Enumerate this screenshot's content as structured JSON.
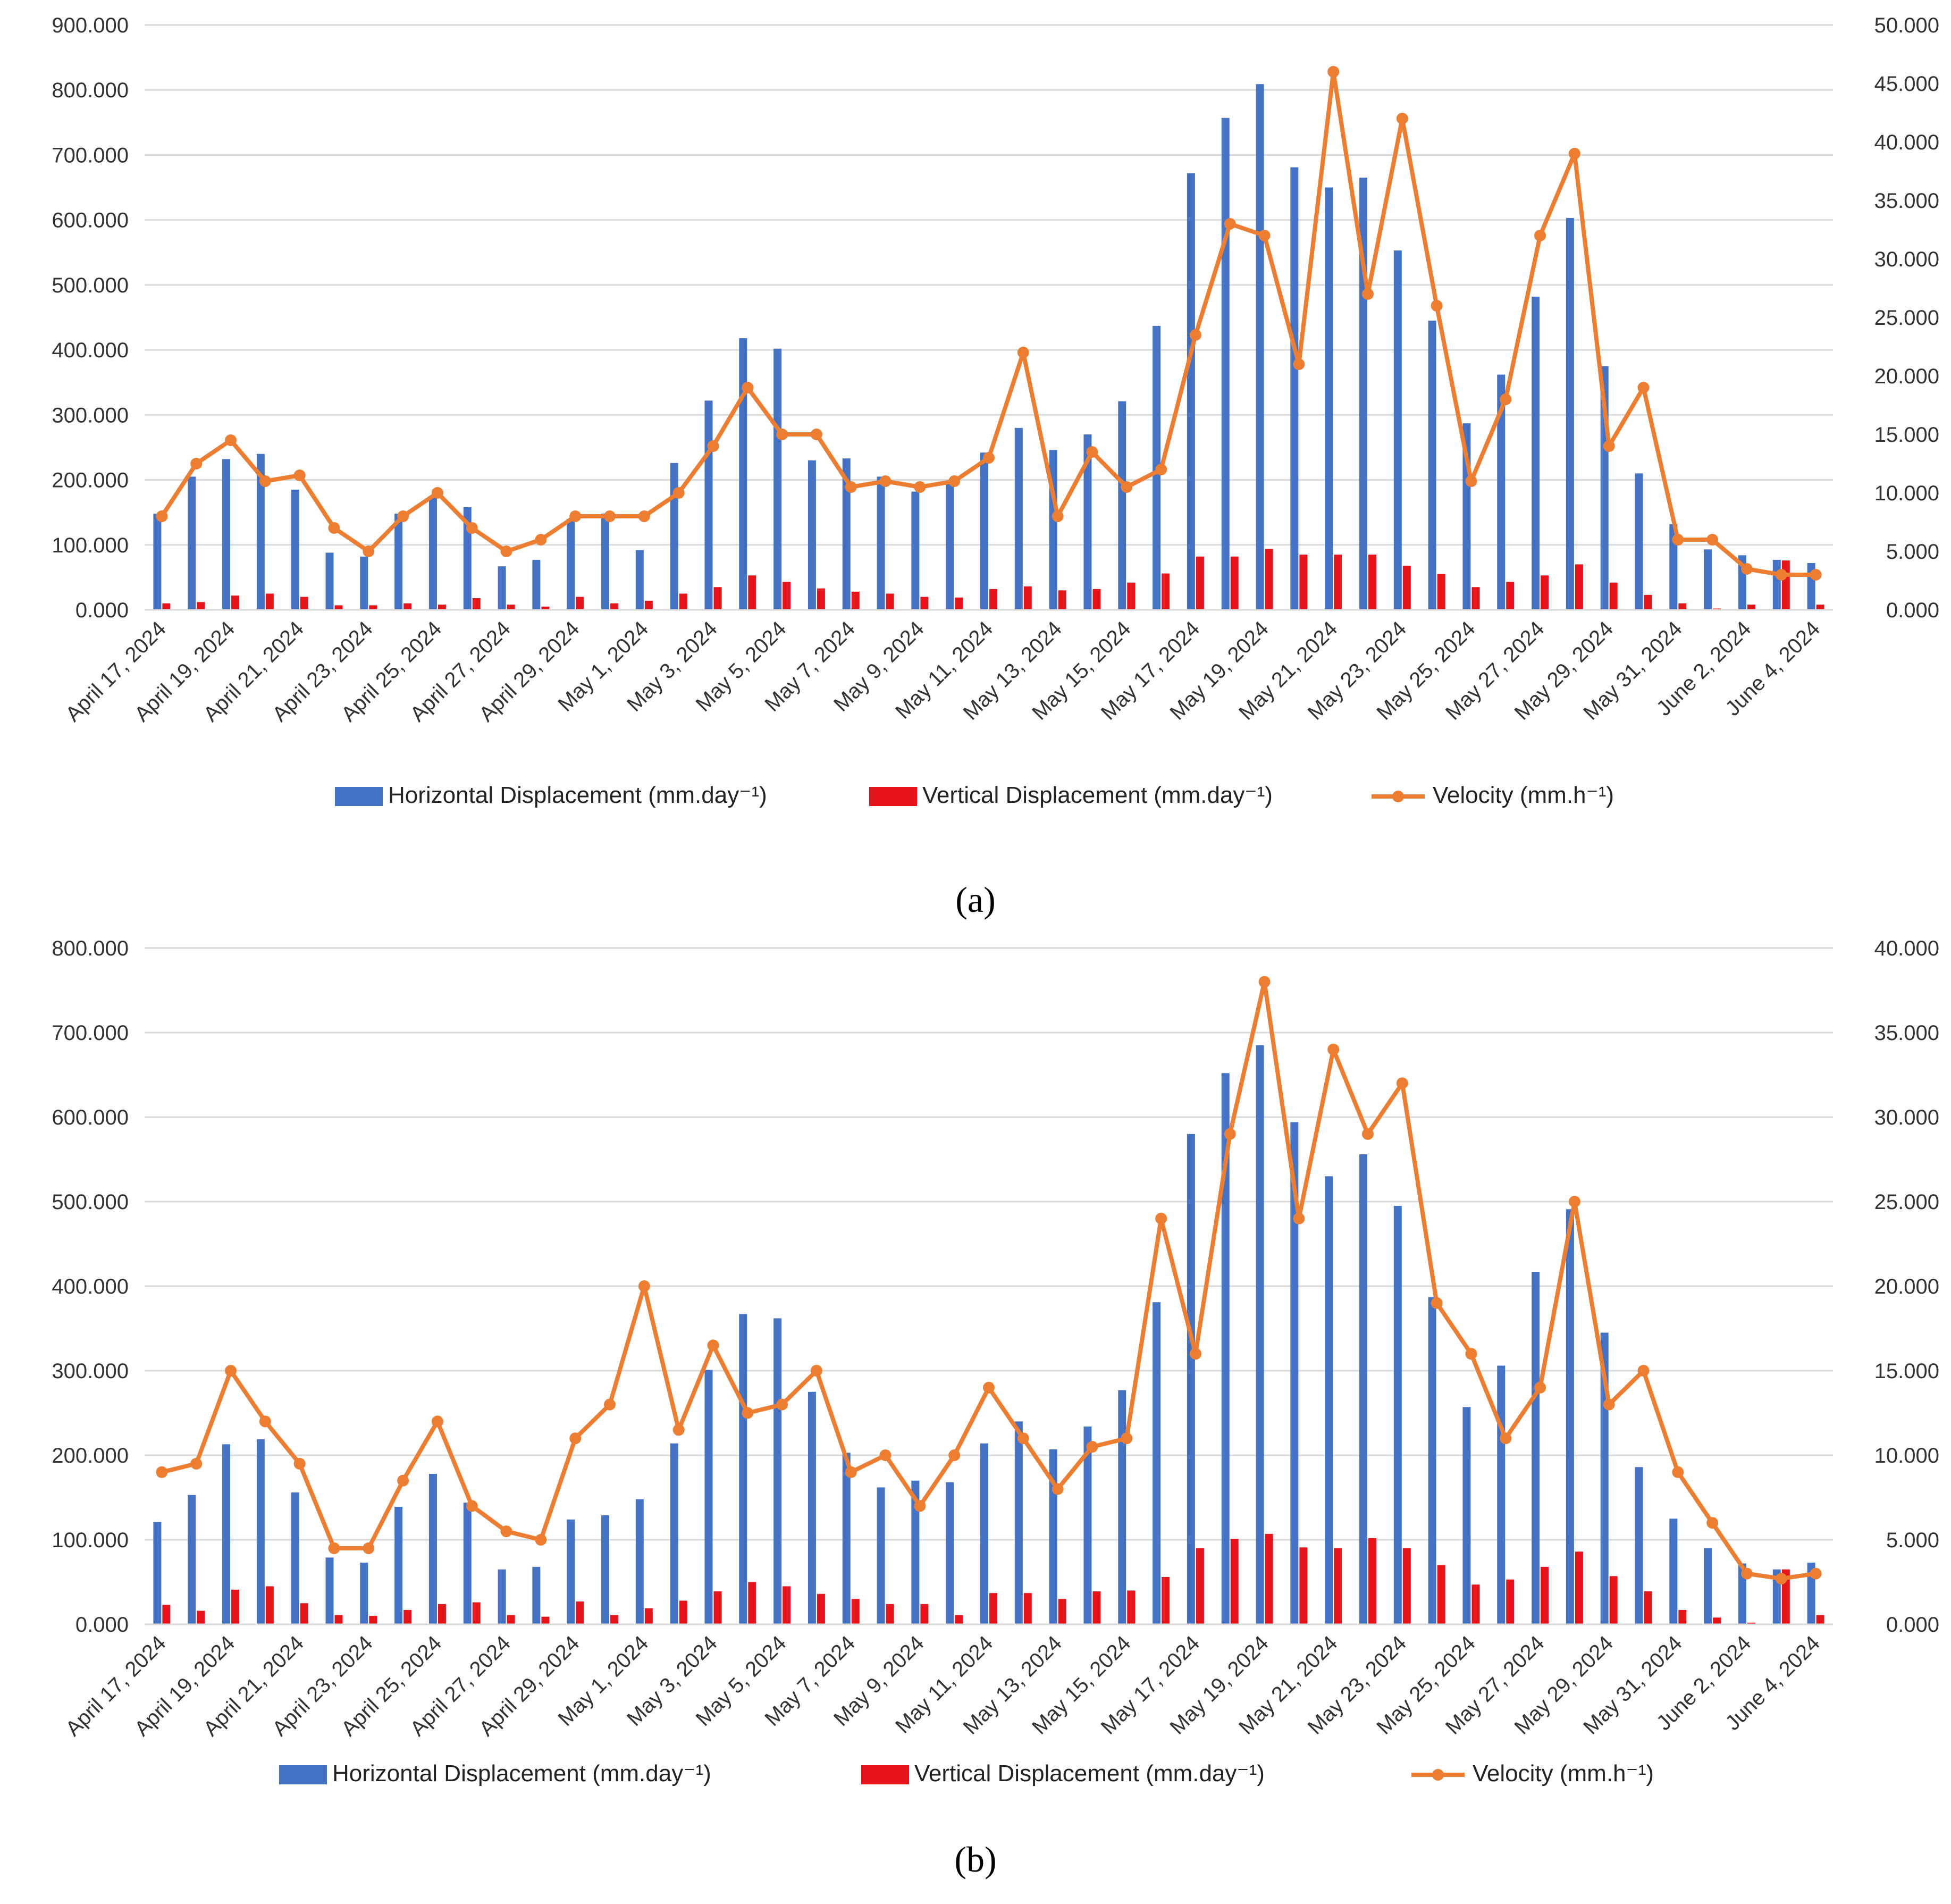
{
  "legend": {
    "horizontal": "Horizontal Displacement (mm.day⁻¹)",
    "vertical": "Vertical Displacement (mm.day⁻¹)",
    "velocity": "Velocity (mm.h⁻¹)"
  },
  "colors": {
    "horizontal": "#4472C4",
    "vertical": "#E8141B",
    "velocity": "#ED7D31",
    "grid": "#D9D9D9"
  },
  "chart_data": [
    {
      "panel": "(a)",
      "type": "bar",
      "title": "",
      "categories": [
        "April 17, 2024",
        "April 18, 2024",
        "April 19, 2024",
        "April 20, 2024",
        "April 21, 2024",
        "April 22, 2024",
        "April 23, 2024",
        "April 24, 2024",
        "April 25, 2024",
        "April 26, 2024",
        "April 27, 2024",
        "April 28, 2024",
        "April 29, 2024",
        "April 30, 2024",
        "May 1, 2024",
        "May 2, 2024",
        "May 3, 2024",
        "May 4, 2024",
        "May 5, 2024",
        "May 6, 2024",
        "May 7, 2024",
        "May 8, 2024",
        "May 9, 2024",
        "May 10, 2024",
        "May 11, 2024",
        "May 12, 2024",
        "May 13, 2024",
        "May 14, 2024",
        "May 15, 2024",
        "May 16, 2024",
        "May 17, 2024",
        "May 18, 2024",
        "May 19, 2024",
        "May 20, 2024",
        "May 21, 2024",
        "May 22, 2024",
        "May 23, 2024",
        "May 24, 2024",
        "May 25, 2024",
        "May 26, 2024",
        "May 27, 2024",
        "May 28, 2024",
        "May 29, 2024",
        "May 30, 2024",
        "May 31, 2024",
        "June 1, 2024",
        "June 2, 2024",
        "June 3, 2024",
        "June 4, 2024"
      ],
      "tick_labels": [
        "April 17, 2024",
        "April 19, 2024",
        "April 21, 2024",
        "April 23, 2024",
        "April 25, 2024",
        "April 27, 2024",
        "April 29, 2024",
        "May 1, 2024",
        "May 3, 2024",
        "May 5, 2024",
        "May 7, 2024",
        "May 9, 2024",
        "May 11, 2024",
        "May 13, 2024",
        "May 15, 2024",
        "May 17, 2024",
        "May 19, 2024",
        "May 21, 2024",
        "May 23, 2024",
        "May 25, 2024",
        "May 27, 2024",
        "May 29, 2024",
        "May 31, 2024",
        "June 2, 2024",
        "June 4, 2024"
      ],
      "ylim": [
        0,
        900
      ],
      "y_ticks": [
        "0.000",
        "100.000",
        "200.000",
        "300.000",
        "400.000",
        "500.000",
        "600.000",
        "700.000",
        "800.000",
        "900.000"
      ],
      "y2lim": [
        0,
        50
      ],
      "y2_ticks": [
        "0.000",
        "5.000",
        "10.000",
        "15.000",
        "20.000",
        "25.000",
        "30.000",
        "35.000",
        "40.000",
        "45.000",
        "50.000"
      ],
      "series": [
        {
          "name": "Horizontal Displacement (mm.day⁻¹)",
          "axis": "left",
          "kind": "bar",
          "values": [
            148,
            205,
            232,
            240,
            185,
            88,
            82,
            148,
            175,
            158,
            67,
            77,
            140,
            148,
            92,
            226,
            322,
            418,
            402,
            230,
            233,
            205,
            182,
            198,
            242,
            280,
            246,
            270,
            321,
            437,
            672,
            757,
            809,
            681,
            650,
            665,
            553,
            445,
            287,
            362,
            482,
            603,
            375,
            210,
            132,
            93,
            84,
            77,
            72
          ]
        },
        {
          "name": "Vertical Displacement (mm.day⁻¹)",
          "axis": "left",
          "kind": "bar",
          "values": [
            10,
            12,
            22,
            25,
            20,
            7,
            7,
            10,
            8,
            18,
            8,
            5,
            20,
            10,
            14,
            25,
            35,
            53,
            43,
            33,
            28,
            25,
            20,
            19,
            32,
            36,
            30,
            32,
            42,
            56,
            82,
            82,
            94,
            85,
            85,
            85,
            68,
            55,
            35,
            43,
            53,
            70,
            42,
            23,
            10,
            2,
            8,
            76,
            8
          ]
        },
        {
          "name": "Velocity (mm.h⁻¹)",
          "axis": "right",
          "kind": "line",
          "values": [
            8,
            12.5,
            14.5,
            11,
            11.5,
            7,
            5,
            8,
            10,
            7,
            5,
            6,
            8,
            8,
            8,
            10,
            14,
            19,
            15,
            15,
            10.5,
            11,
            10.5,
            11,
            13,
            22,
            8,
            13.5,
            10.5,
            12,
            23.5,
            33,
            32,
            21,
            46,
            27,
            42,
            26,
            11,
            18,
            32,
            39,
            14,
            19,
            6,
            6,
            3.5,
            3,
            3
          ]
        }
      ]
    },
    {
      "panel": "(b)",
      "type": "bar",
      "title": "",
      "categories": [
        "April 17, 2024",
        "April 18, 2024",
        "April 19, 2024",
        "April 20, 2024",
        "April 21, 2024",
        "April 22, 2024",
        "April 23, 2024",
        "April 24, 2024",
        "April 25, 2024",
        "April 26, 2024",
        "April 27, 2024",
        "April 28, 2024",
        "April 29, 2024",
        "April 30, 2024",
        "May 1, 2024",
        "May 2, 2024",
        "May 3, 2024",
        "May 4, 2024",
        "May 5, 2024",
        "May 6, 2024",
        "May 7, 2024",
        "May 8, 2024",
        "May 9, 2024",
        "May 10, 2024",
        "May 11, 2024",
        "May 12, 2024",
        "May 13, 2024",
        "May 14, 2024",
        "May 15, 2024",
        "May 16, 2024",
        "May 17, 2024",
        "May 18, 2024",
        "May 19, 2024",
        "May 20, 2024",
        "May 21, 2024",
        "May 22, 2024",
        "May 23, 2024",
        "May 24, 2024",
        "May 25, 2024",
        "May 26, 2024",
        "May 27, 2024",
        "May 28, 2024",
        "May 29, 2024",
        "May 30, 2024",
        "May 31, 2024",
        "June 1, 2024",
        "June 2, 2024",
        "June 3, 2024",
        "June 4, 2024"
      ],
      "tick_labels": [
        "April 17, 2024",
        "April 19, 2024",
        "April 21, 2024",
        "April 23, 2024",
        "April 25, 2024",
        "April 27, 2024",
        "April 29, 2024",
        "May 1, 2024",
        "May 3, 2024",
        "May 5, 2024",
        "May 7, 2024",
        "May 9, 2024",
        "May 11, 2024",
        "May 13, 2024",
        "May 15, 2024",
        "May 17, 2024",
        "May 19, 2024",
        "May 21, 2024",
        "May 23, 2024",
        "May 25, 2024",
        "May 27, 2024",
        "May 29, 2024",
        "May 31, 2024",
        "June 2, 2024",
        "June 4, 2024"
      ],
      "ylim": [
        0,
        800
      ],
      "y_ticks": [
        "0.000",
        "100.000",
        "200.000",
        "300.000",
        "400.000",
        "500.000",
        "600.000",
        "700.000",
        "800.000"
      ],
      "y2lim": [
        0,
        40
      ],
      "y2_ticks": [
        "0.000",
        "5.000",
        "10.000",
        "15.000",
        "20.000",
        "25.000",
        "30.000",
        "35.000",
        "40.000"
      ],
      "series": [
        {
          "name": "Horizontal Displacement (mm.day⁻¹)",
          "axis": "left",
          "kind": "bar",
          "values": [
            121,
            153,
            213,
            219,
            156,
            79,
            73,
            139,
            178,
            144,
            65,
            68,
            124,
            129,
            148,
            214,
            301,
            367,
            362,
            275,
            203,
            162,
            170,
            168,
            214,
            240,
            207,
            234,
            277,
            381,
            580,
            652,
            685,
            594,
            530,
            556,
            495,
            387,
            257,
            306,
            417,
            491,
            345,
            186,
            125,
            90,
            72,
            65,
            73
          ]
        },
        {
          "name": "Vertical Displacement (mm.day⁻¹)",
          "axis": "left",
          "kind": "bar",
          "values": [
            23,
            16,
            41,
            45,
            25,
            11,
            10,
            17,
            24,
            26,
            11,
            9,
            27,
            11,
            19,
            28,
            39,
            50,
            45,
            36,
            30,
            24,
            24,
            11,
            37,
            37,
            30,
            39,
            40,
            56,
            90,
            101,
            107,
            91,
            90,
            102,
            90,
            70,
            47,
            53,
            68,
            86,
            57,
            39,
            17,
            8,
            2,
            65,
            11
          ]
        },
        {
          "name": "Velocity (mm.h⁻¹)",
          "axis": "right",
          "kind": "line",
          "values": [
            9,
            9.5,
            15,
            12,
            9.5,
            4.5,
            4.5,
            8.5,
            12,
            7,
            5.5,
            5,
            11,
            13,
            20,
            11.5,
            16.5,
            12.5,
            13,
            15,
            9,
            10,
            7,
            10,
            14,
            11,
            8,
            10.5,
            11,
            24,
            16,
            29,
            38,
            24,
            34,
            29,
            32,
            19,
            16,
            11,
            14,
            25,
            13,
            15,
            9,
            6,
            3,
            2.7,
            3
          ]
        }
      ]
    }
  ]
}
